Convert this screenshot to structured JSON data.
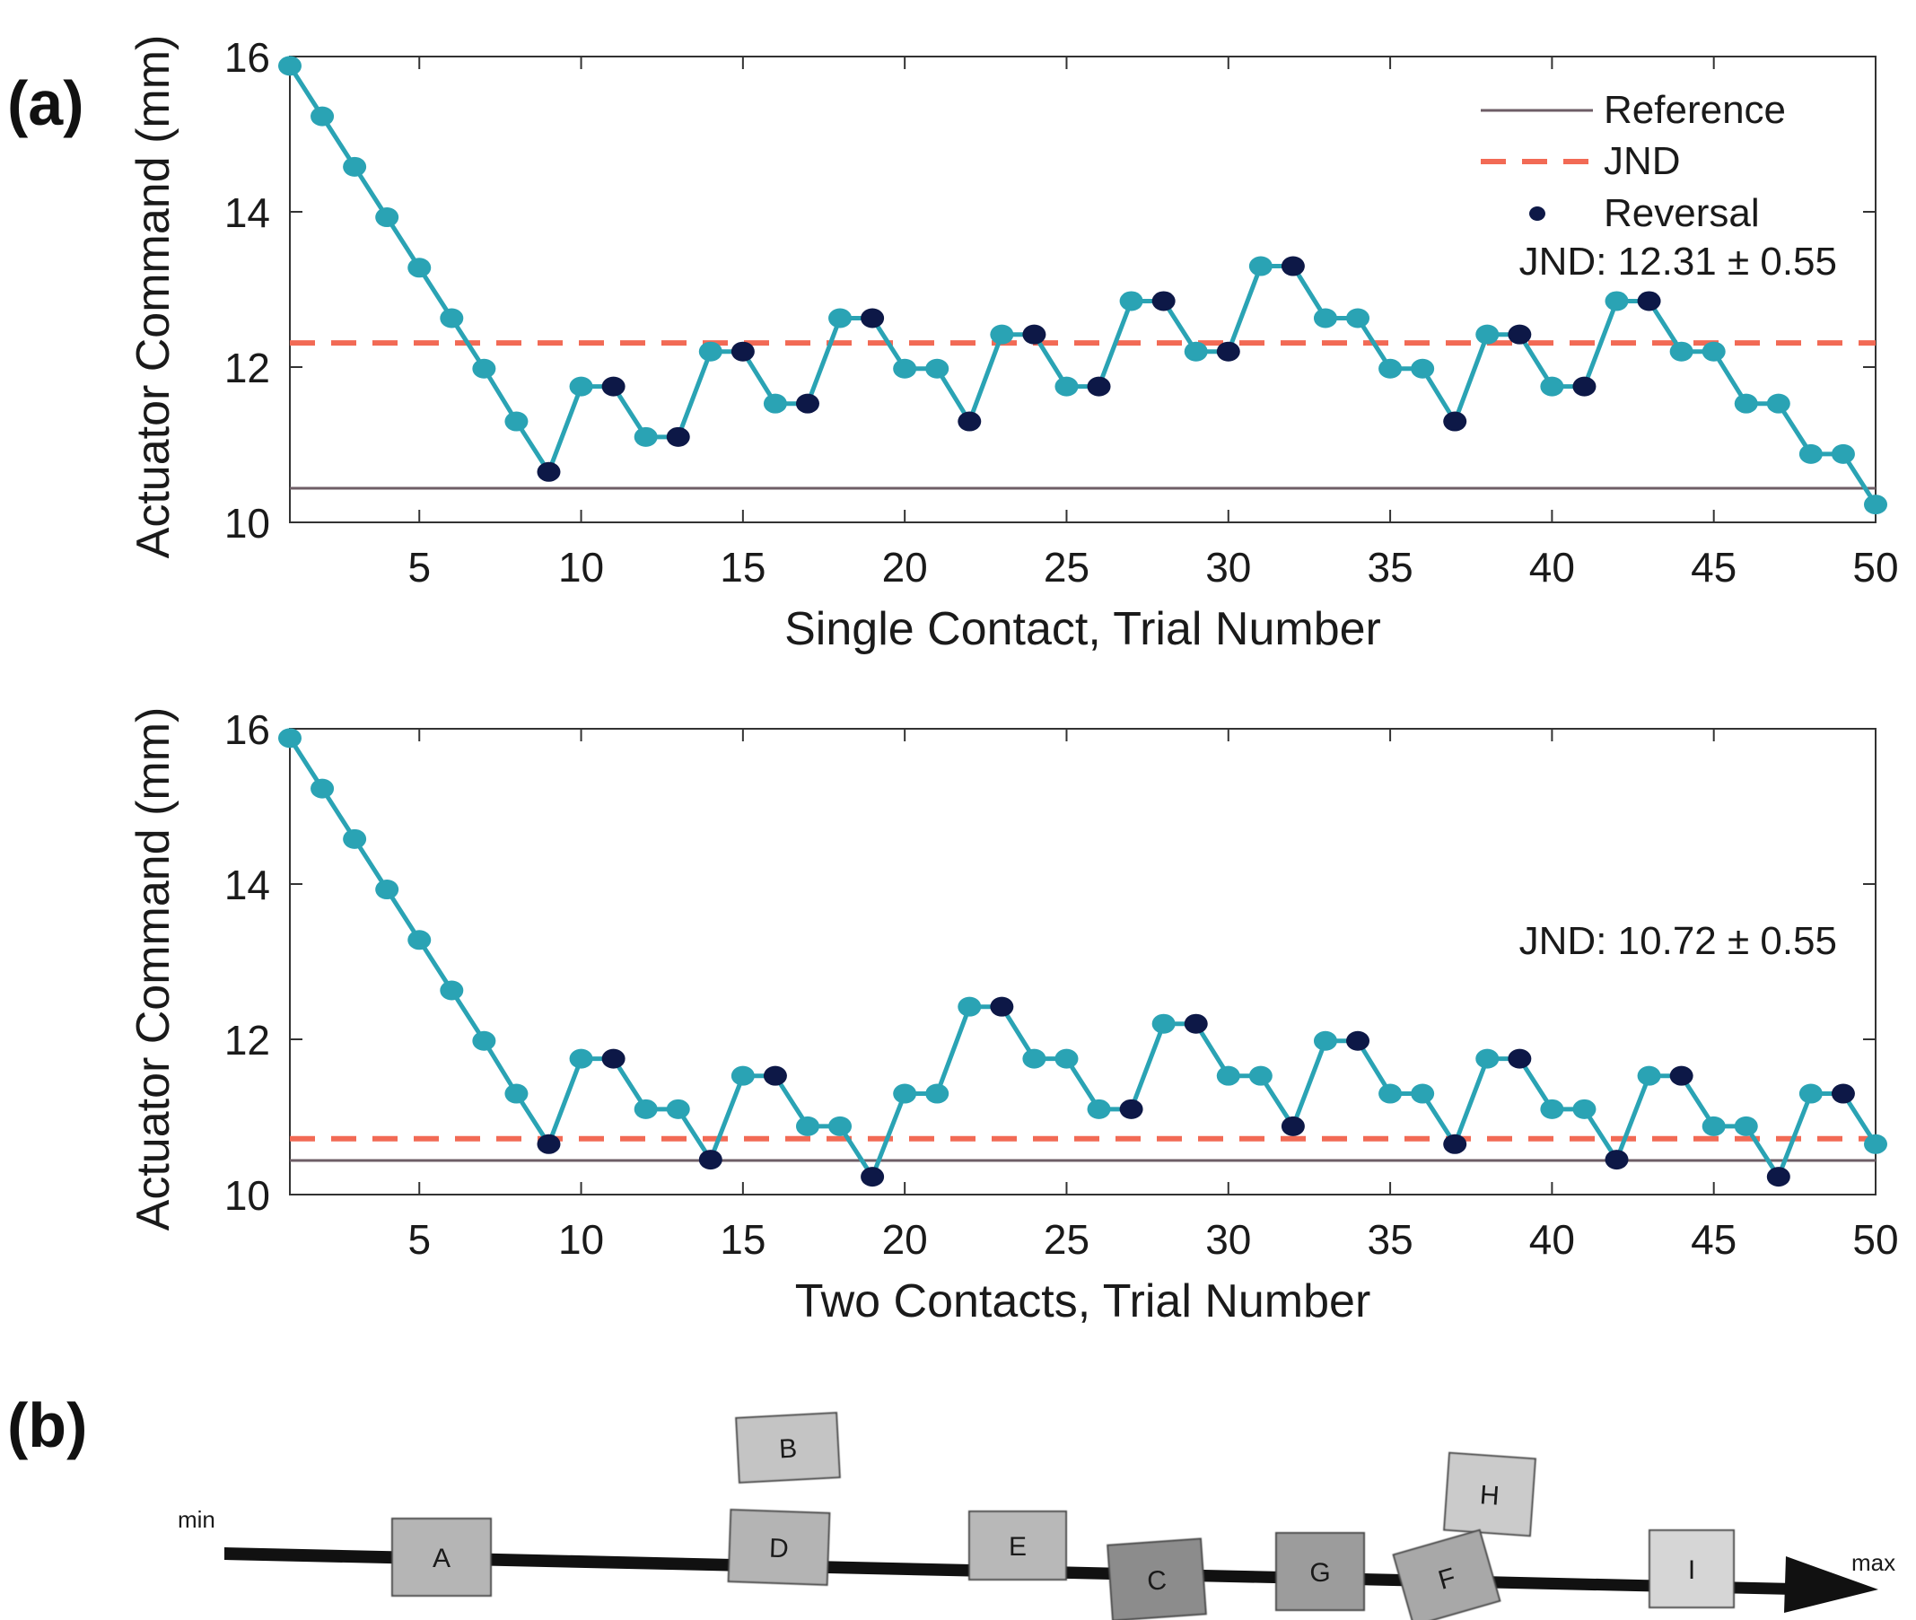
{
  "panel_labels": {
    "a": "(a)",
    "b": "(b)"
  },
  "colors": {
    "series": "#2aa3b4",
    "reversal": "#0d1847",
    "reference": "#6e5e66",
    "jnd": "#f26a55",
    "axis": "#333333"
  },
  "legend": {
    "reference": "Reference",
    "jnd": "JND",
    "reversal": "Reversal"
  },
  "chart_data": [
    {
      "type": "line",
      "ylabel": "Actuator Command (mm)",
      "xlabel": "Single Contact, Trial Number",
      "xlim": [
        1,
        50
      ],
      "ylim": [
        10,
        16
      ],
      "xticks": [
        5,
        10,
        15,
        20,
        25,
        30,
        35,
        40,
        45,
        50
      ],
      "yticks": [
        10,
        12,
        14,
        16
      ],
      "annotation": "JND: 12.31 ± 0.55",
      "reference": 10.44,
      "jnd": 12.31,
      "x": [
        1,
        2,
        3,
        4,
        5,
        6,
        7,
        8,
        9,
        10,
        11,
        12,
        13,
        14,
        15,
        16,
        17,
        18,
        19,
        20,
        21,
        22,
        23,
        24,
        25,
        26,
        27,
        28,
        29,
        30,
        31,
        32,
        33,
        34,
        35,
        36,
        37,
        38,
        39,
        40,
        41,
        42,
        43,
        44,
        45,
        46,
        47,
        48,
        49,
        50
      ],
      "y": [
        15.88,
        15.23,
        14.58,
        13.93,
        13.28,
        12.63,
        11.98,
        11.3,
        10.65,
        11.75,
        11.75,
        11.1,
        11.1,
        12.2,
        12.2,
        11.53,
        11.53,
        12.63,
        12.63,
        11.98,
        11.98,
        11.3,
        12.42,
        12.42,
        11.75,
        11.75,
        12.85,
        12.85,
        12.2,
        12.2,
        13.3,
        13.3,
        12.63,
        12.63,
        11.98,
        11.98,
        11.3,
        12.42,
        12.42,
        11.75,
        11.75,
        12.85,
        12.85,
        12.2,
        12.2,
        11.53,
        11.53,
        10.88,
        10.88,
        10.23
      ],
      "reversals": [
        9,
        11,
        13,
        15,
        17,
        19,
        22,
        24,
        26,
        28,
        30,
        32,
        37,
        39,
        41,
        43
      ]
    },
    {
      "type": "line",
      "ylabel": "Actuator Command (mm)",
      "xlabel": "Two Contacts, Trial Number",
      "xlim": [
        1,
        50
      ],
      "ylim": [
        10,
        16
      ],
      "xticks": [
        5,
        10,
        15,
        20,
        25,
        30,
        35,
        40,
        45,
        50
      ],
      "yticks": [
        10,
        12,
        14,
        16
      ],
      "annotation": "JND: 10.72 ± 0.55",
      "reference": 10.44,
      "jnd": 10.72,
      "x": [
        1,
        2,
        3,
        4,
        5,
        6,
        7,
        8,
        9,
        10,
        11,
        12,
        13,
        14,
        15,
        16,
        17,
        18,
        19,
        20,
        21,
        22,
        23,
        24,
        25,
        26,
        27,
        28,
        29,
        30,
        31,
        32,
        33,
        34,
        35,
        36,
        37,
        38,
        39,
        40,
        41,
        42,
        43,
        44,
        45,
        46,
        47,
        48,
        49,
        50
      ],
      "y": [
        15.88,
        15.23,
        14.58,
        13.93,
        13.28,
        12.63,
        11.98,
        11.3,
        10.65,
        11.75,
        11.75,
        11.1,
        11.1,
        10.45,
        11.53,
        11.53,
        10.88,
        10.88,
        10.23,
        11.3,
        11.3,
        12.42,
        12.42,
        11.75,
        11.75,
        11.1,
        11.1,
        12.2,
        12.2,
        11.53,
        11.53,
        10.88,
        11.98,
        11.98,
        11.3,
        11.3,
        10.65,
        11.75,
        11.75,
        11.1,
        11.1,
        10.45,
        11.53,
        11.53,
        10.88,
        10.88,
        10.23,
        11.3,
        11.3,
        10.65
      ],
      "reversals": [
        9,
        11,
        14,
        16,
        19,
        23,
        27,
        29,
        32,
        34,
        37,
        39,
        42,
        44,
        47,
        49
      ]
    }
  ],
  "ordering": {
    "min_label": "min",
    "max_label": "max",
    "blocks": [
      "A",
      "B",
      "D",
      "E",
      "C",
      "G",
      "H",
      "F",
      "I"
    ]
  }
}
